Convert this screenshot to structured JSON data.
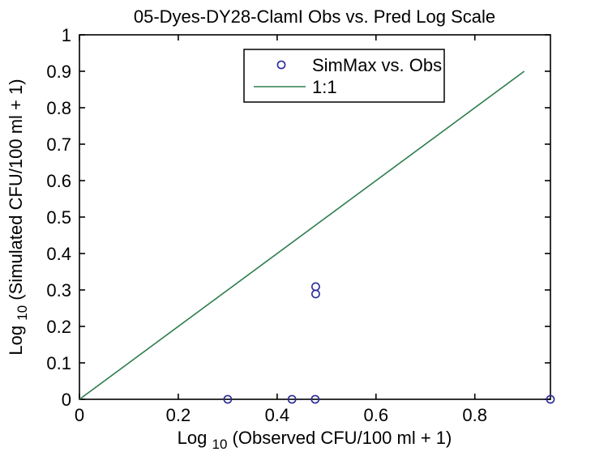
{
  "figure": {
    "background": "#ffffff",
    "axis_color": "#000000"
  },
  "chart_data": {
    "type": "scatter",
    "title": "05-Dyes-DY28-ClamI Obs vs. Pred Log Scale",
    "xlabel": "Log10(Observed CFU/100 ml + 1)",
    "ylabel": "Log10(Simulated CFU/100 ml + 1)",
    "xlabel_parts": {
      "pre": "Log",
      "sub": "10",
      "post": "(Observed CFU/100 ml + 1)"
    },
    "ylabel_parts": {
      "pre": "Log",
      "sub": "10",
      "post": "(Simulated CFU/100 ml + 1)"
    },
    "xlim": [
      0,
      0.953
    ],
    "ylim": [
      0,
      1
    ],
    "x_ticks": [
      0,
      0.2,
      0.4,
      0.6,
      0.8
    ],
    "x_tick_labels": [
      "0",
      "0.2",
      "0.4",
      "0.6",
      "0.8"
    ],
    "y_ticks": [
      0,
      0.1,
      0.2,
      0.3,
      0.4,
      0.5,
      0.6,
      0.7,
      0.8,
      0.9,
      1
    ],
    "y_tick_labels": [
      "0",
      "0.1",
      "0.2",
      "0.3",
      "0.4",
      "0.5",
      "0.6",
      "0.7",
      "0.8",
      "0.9",
      "1"
    ],
    "grid": false,
    "legend": {
      "position": "top-center",
      "border": true,
      "entries": [
        "SimMax vs. Obs",
        "1:1"
      ]
    },
    "series": [
      {
        "name": "SimMax vs. Obs",
        "type": "scatter",
        "marker": "circle",
        "color": "#2a2a99",
        "points": [
          [
            0.3,
            0
          ],
          [
            0.43,
            0
          ],
          [
            0.477,
            0
          ],
          [
            0.478,
            0.309
          ],
          [
            0.478,
            0.289
          ],
          [
            0.953,
            0
          ]
        ]
      },
      {
        "name": "1:1",
        "type": "line",
        "color": "#2e7d4f",
        "points": [
          [
            0,
            0
          ],
          [
            0.9,
            0.9
          ]
        ]
      }
    ]
  }
}
